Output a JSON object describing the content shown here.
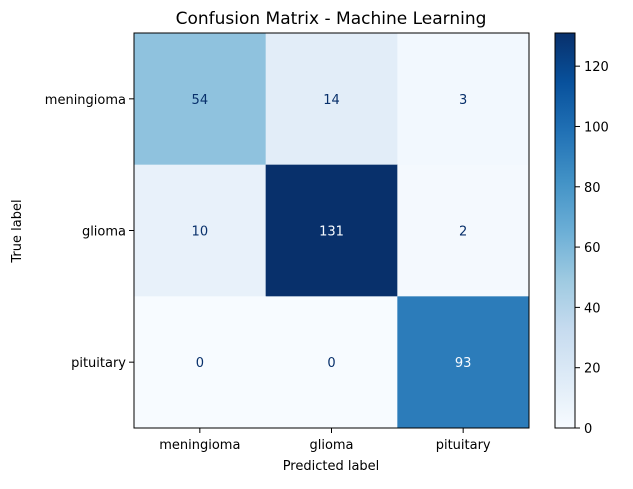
{
  "chart_data": {
    "type": "heatmap",
    "title": "Confusion Matrix - Machine Learning",
    "xlabel": "Predicted label",
    "ylabel": "True label",
    "x_categories": [
      "meningioma",
      "glioma",
      "pituitary"
    ],
    "y_categories": [
      "meningioma",
      "glioma",
      "pituitary"
    ],
    "values": [
      [
        54,
        14,
        3
      ],
      [
        10,
        131,
        2
      ],
      [
        0,
        0,
        93
      ]
    ],
    "colormap": "Blues",
    "colorbar": {
      "min": 0,
      "max": 131,
      "ticks": [
        0,
        20,
        40,
        60,
        80,
        100,
        120
      ]
    }
  }
}
